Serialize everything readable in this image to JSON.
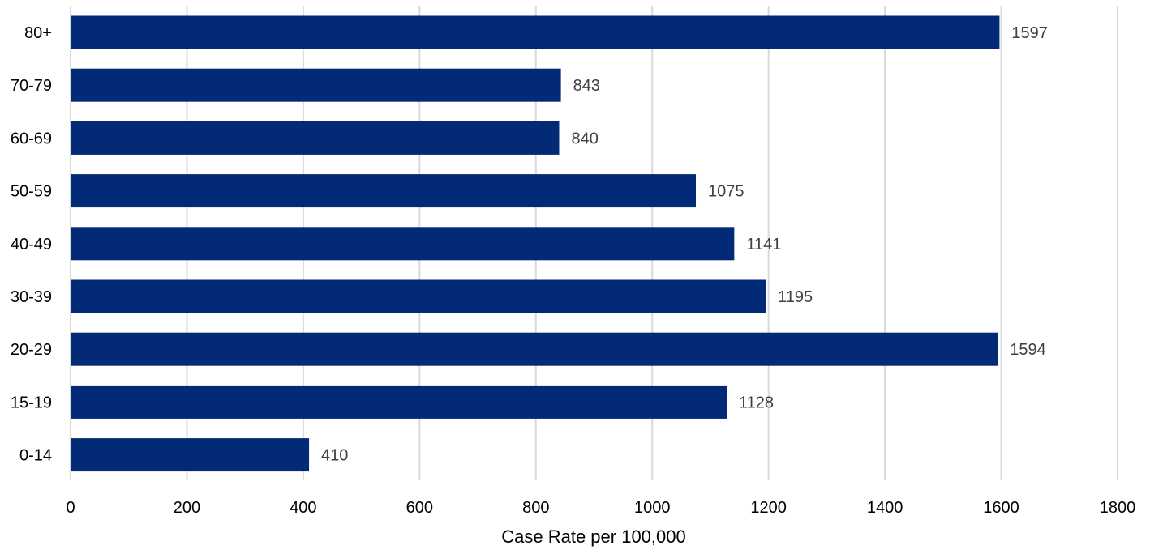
{
  "chart_data": {
    "type": "bar",
    "orientation": "horizontal",
    "categories": [
      "80+",
      "70-79",
      "60-69",
      "50-59",
      "40-49",
      "30-39",
      "20-29",
      "15-19",
      "0-14"
    ],
    "values": [
      1597,
      843,
      840,
      1075,
      1141,
      1195,
      1594,
      1128,
      410
    ],
    "data_labels": [
      "1597",
      "843",
      "840",
      "1075",
      "1141",
      "1195",
      "1594",
      "1128",
      "410"
    ],
    "x_ticks": [
      "0",
      "200",
      "400",
      "600",
      "800",
      "1000",
      "1200",
      "1400",
      "1600",
      "1800"
    ],
    "xlim": [
      0,
      1800
    ],
    "xlabel": "Case Rate per 100,000",
    "grid": "vertical",
    "legend": "none",
    "colors": {
      "bar": "#022a77",
      "grid": "#d9d9d9",
      "axis_text": "#000000",
      "data_label": "#404040"
    }
  }
}
